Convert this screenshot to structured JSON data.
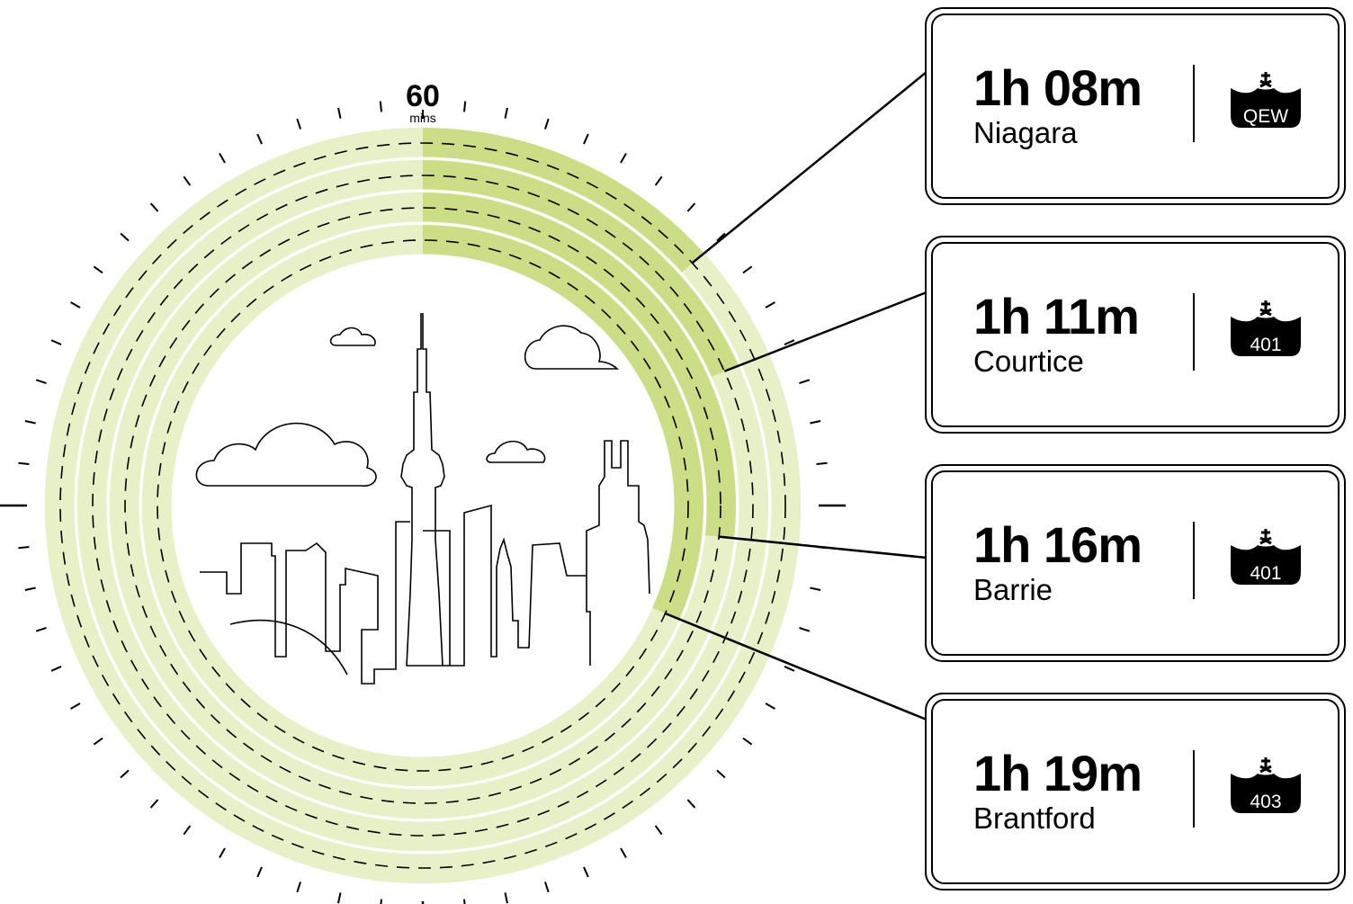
{
  "scale": {
    "value": "60",
    "unit": "mins",
    "tick_count": 60
  },
  "routes": [
    {
      "time": "1h 08m",
      "city": "Niagara",
      "highway": "QEW",
      "minutes": 68
    },
    {
      "time": "1h 11m",
      "city": "Courtice",
      "highway": "401",
      "minutes": 71
    },
    {
      "time": "1h 16m",
      "city": "Barrie",
      "highway": "401",
      "minutes": 76
    },
    {
      "time": "1h 19m",
      "city": "Brantford",
      "highway": "403",
      "minutes": 79
    }
  ],
  "colors": {
    "ring": "#cbdd85",
    "ring_overflow": "#e8f0c8",
    "line": "#000000",
    "background": "#ffffff"
  },
  "icons": {
    "shield": "crown-shield-icon",
    "skyline": "toronto-skyline-icon",
    "cloud": "cloud-icon"
  }
}
